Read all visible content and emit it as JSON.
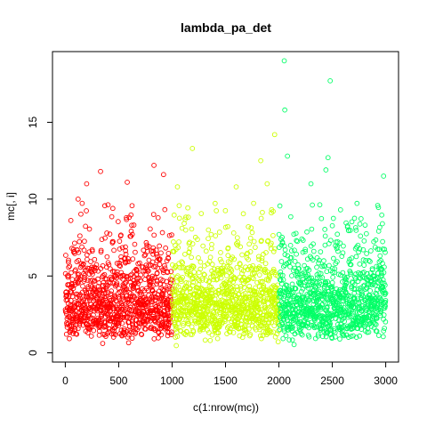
{
  "chart_data": {
    "type": "scatter",
    "title": "lambda_pa_det",
    "xlabel": "c(1:nrow(mc))",
    "ylabel": "mc[, i]",
    "xlim": [
      -120,
      3120
    ],
    "ylim": [
      -0.6,
      19.6
    ],
    "x_ticks": [
      0,
      500,
      1000,
      1500,
      2000,
      2500,
      3000
    ],
    "y_ticks": [
      0,
      5,
      10,
      15
    ],
    "grid": false,
    "marker": "open-circle",
    "series": [
      {
        "color": "#FF0000",
        "x_range": [
          1,
          1000
        ],
        "values_summary": "points at x=1..1000, y mostly 0.4–9.5, dense 1–6",
        "outliers": [
          [
            330,
            11.8
          ],
          [
            830,
            12.2
          ],
          [
            200,
            11.0
          ],
          [
            580,
            11.1
          ],
          [
            920,
            11.6
          ],
          [
            120,
            10.0
          ]
        ]
      },
      {
        "color": "#CCFF00",
        "x_range": [
          1001,
          2000
        ],
        "values_summary": "points at x=1001..2000, y mostly 0.2–9, dense 1–6",
        "outliers": [
          [
            1190,
            13.3
          ],
          [
            1830,
            12.5
          ],
          [
            1960,
            14.2
          ],
          [
            1050,
            10.8
          ],
          [
            1600,
            10.8
          ],
          [
            1890,
            11.0
          ]
        ]
      },
      {
        "color": "#00FF66",
        "x_range": [
          2001,
          3000
        ],
        "values_summary": "points at x=2001..3000, y mostly 0.3–9.5, dense 1–6",
        "outliers": [
          [
            2050,
            19.0
          ],
          [
            2480,
            17.7
          ],
          [
            2055,
            15.8
          ],
          [
            2460,
            12.7
          ],
          [
            2080,
            12.8
          ],
          [
            2440,
            11.9
          ],
          [
            2980,
            11.5
          ],
          [
            2300,
            11.0
          ]
        ]
      }
    ]
  }
}
